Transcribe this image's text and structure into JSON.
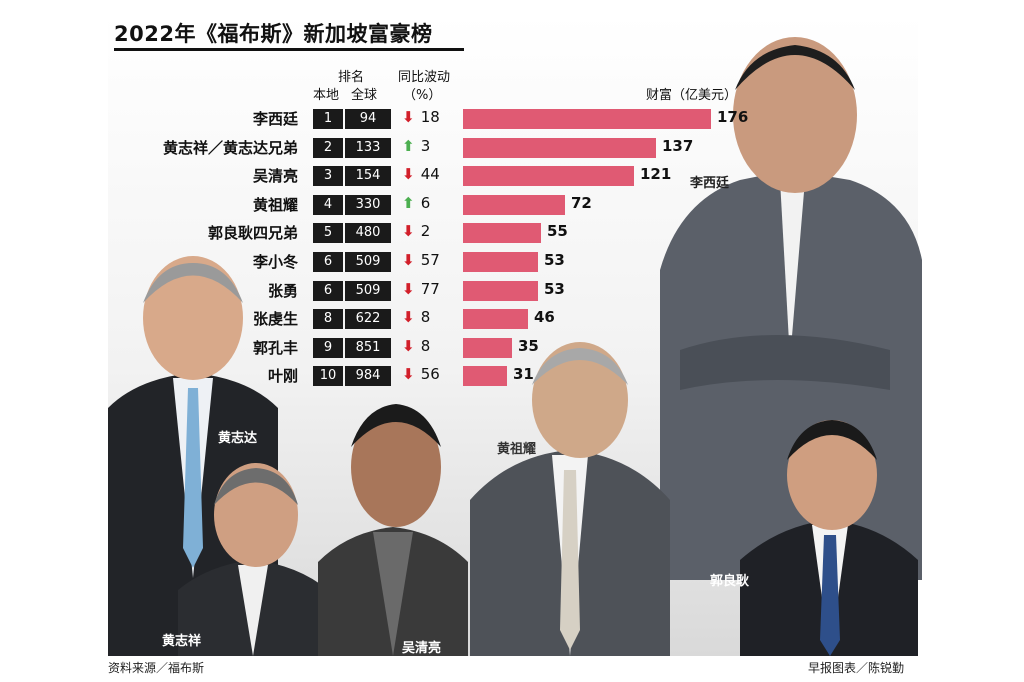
{
  "title": "2022年《福布斯》新加坡富豪榜",
  "headers": {
    "rank": "排名",
    "local": "本地",
    "global": "全球",
    "change_line1": "同比波动",
    "change_line2": "（%）",
    "wealth": "财富（亿美元）"
  },
  "chart_data": {
    "type": "bar",
    "title": "2022年《福布斯》新加坡富豪榜",
    "ylabel": "财富（亿美元）",
    "categories": [
      "李西廷",
      "黄志祥／黄志达兄弟",
      "吴清亮",
      "黄祖耀",
      "郭良耿四兄弟",
      "李小冬",
      "张勇",
      "张虔生",
      "郭孔丰",
      "叶刚"
    ],
    "values": [
      176,
      137,
      121,
      72,
      55,
      53,
      53,
      46,
      35,
      31
    ],
    "local_rank": [
      "1",
      "2",
      "3",
      "4",
      "5",
      "6",
      "6",
      "8",
      "9",
      "10"
    ],
    "global_rank": [
      "94",
      "133",
      "154",
      "330",
      "480",
      "509",
      "509",
      "622",
      "851",
      "984"
    ],
    "change_pct": [
      18,
      3,
      44,
      6,
      2,
      57,
      77,
      8,
      8,
      56
    ],
    "change_dir": [
      "down",
      "up",
      "down",
      "up",
      "down",
      "down",
      "down",
      "down",
      "down",
      "down"
    ],
    "colors": {
      "bar": "#e05a73",
      "down": "#d21f2a",
      "up": "#4caf50",
      "rank_box": "#1a1a1a"
    }
  },
  "photo_captions": {
    "li_xiting": "李西廷",
    "huang_zhida": "黄志达",
    "huang_zhixiang": "黄志祥",
    "wu_qingliang": "吴清亮",
    "huang_zuyao": "黄祖耀",
    "guo_lianggeng": "郭良耿"
  },
  "footer": {
    "source": "资料来源／福布斯",
    "credit": "早报图表／陈锐勤"
  }
}
